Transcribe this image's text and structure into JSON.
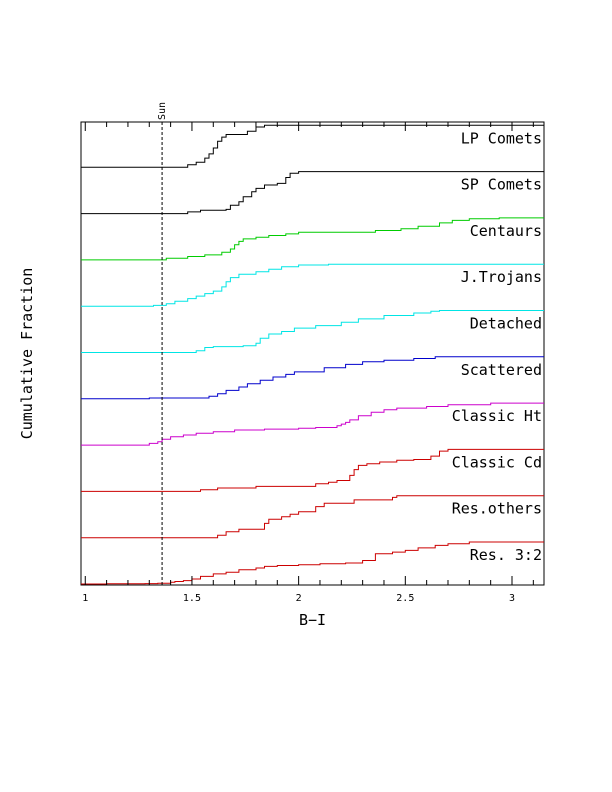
{
  "chart_data": {
    "type": "line",
    "xlabel": "B−I",
    "ylabel": "Cumulative Fraction",
    "xlim": [
      0.98,
      3.15
    ],
    "x_ticks": [
      1,
      1.5,
      2,
      2.5,
      3
    ],
    "x_tick_labels": [
      "1",
      "1.5",
      "2",
      "2.5",
      "3"
    ],
    "grid": false,
    "reference_line": {
      "x": 1.36,
      "label": "Sun"
    },
    "series": [
      {
        "name": "Res. 3:2",
        "color": "#cc0000",
        "steps": [
          [
            0.98,
            0.0
          ],
          [
            1.1,
            0.004
          ],
          [
            1.28,
            0.01
          ],
          [
            1.34,
            0.02
          ],
          [
            1.4,
            0.04
          ],
          [
            1.42,
            0.06
          ],
          [
            1.46,
            0.08
          ],
          [
            1.5,
            0.12
          ],
          [
            1.54,
            0.18
          ],
          [
            1.6,
            0.24
          ],
          [
            1.66,
            0.28
          ],
          [
            1.72,
            0.34
          ],
          [
            1.8,
            0.38
          ],
          [
            1.84,
            0.42
          ],
          [
            1.9,
            0.44
          ],
          [
            2.0,
            0.46
          ],
          [
            2.1,
            0.48
          ],
          [
            2.22,
            0.5
          ],
          [
            2.3,
            0.56
          ],
          [
            2.36,
            0.72
          ],
          [
            2.44,
            0.76
          ],
          [
            2.5,
            0.8
          ],
          [
            2.56,
            0.86
          ],
          [
            2.64,
            0.92
          ],
          [
            2.7,
            0.96
          ],
          [
            2.8,
            1.0
          ],
          [
            3.15,
            1.0
          ]
        ]
      },
      {
        "name": "Res.others",
        "color": "#cc0000",
        "steps": [
          [
            0.98,
            0.0
          ],
          [
            1.62,
            0.06
          ],
          [
            1.66,
            0.14
          ],
          [
            1.72,
            0.2
          ],
          [
            1.84,
            0.34
          ],
          [
            1.86,
            0.44
          ],
          [
            1.92,
            0.5
          ],
          [
            1.96,
            0.56
          ],
          [
            2.0,
            0.62
          ],
          [
            2.08,
            0.74
          ],
          [
            2.12,
            0.82
          ],
          [
            2.26,
            0.9
          ],
          [
            2.44,
            0.96
          ],
          [
            2.46,
            1.0
          ],
          [
            3.15,
            1.0
          ]
        ]
      },
      {
        "name": "Classic Cd",
        "color": "#cc0000",
        "steps": [
          [
            0.98,
            0.0
          ],
          [
            1.54,
            0.04
          ],
          [
            1.62,
            0.08
          ],
          [
            1.8,
            0.12
          ],
          [
            2.08,
            0.18
          ],
          [
            2.14,
            0.22
          ],
          [
            2.18,
            0.26
          ],
          [
            2.24,
            0.38
          ],
          [
            2.26,
            0.52
          ],
          [
            2.28,
            0.62
          ],
          [
            2.32,
            0.66
          ],
          [
            2.38,
            0.7
          ],
          [
            2.46,
            0.74
          ],
          [
            2.54,
            0.76
          ],
          [
            2.62,
            0.84
          ],
          [
            2.66,
            0.96
          ],
          [
            2.7,
            1.0
          ],
          [
            3.15,
            1.0
          ]
        ]
      },
      {
        "name": "Classic Ht",
        "color": "#cc00cc",
        "steps": [
          [
            0.98,
            0.0
          ],
          [
            1.3,
            0.04
          ],
          [
            1.34,
            0.08
          ],
          [
            1.36,
            0.14
          ],
          [
            1.4,
            0.2
          ],
          [
            1.46,
            0.24
          ],
          [
            1.52,
            0.28
          ],
          [
            1.6,
            0.32
          ],
          [
            1.7,
            0.36
          ],
          [
            1.84,
            0.38
          ],
          [
            2.0,
            0.4
          ],
          [
            2.08,
            0.42
          ],
          [
            2.18,
            0.46
          ],
          [
            2.2,
            0.5
          ],
          [
            2.22,
            0.54
          ],
          [
            2.24,
            0.6
          ],
          [
            2.28,
            0.7
          ],
          [
            2.34,
            0.78
          ],
          [
            2.4,
            0.84
          ],
          [
            2.46,
            0.88
          ],
          [
            2.6,
            0.92
          ],
          [
            2.7,
            0.96
          ],
          [
            2.9,
            1.0
          ],
          [
            3.15,
            1.0
          ]
        ]
      },
      {
        "name": "Scattered",
        "color": "#0000cc",
        "steps": [
          [
            0.98,
            0.0
          ],
          [
            1.3,
            0.02
          ],
          [
            1.58,
            0.06
          ],
          [
            1.62,
            0.12
          ],
          [
            1.66,
            0.2
          ],
          [
            1.72,
            0.28
          ],
          [
            1.76,
            0.36
          ],
          [
            1.82,
            0.44
          ],
          [
            1.88,
            0.52
          ],
          [
            1.94,
            0.58
          ],
          [
            1.98,
            0.64
          ],
          [
            2.12,
            0.74
          ],
          [
            2.22,
            0.82
          ],
          [
            2.3,
            0.88
          ],
          [
            2.4,
            0.92
          ],
          [
            2.54,
            0.96
          ],
          [
            2.64,
            1.0
          ],
          [
            3.15,
            1.0
          ]
        ]
      },
      {
        "name": "Detached",
        "color": "#00e5e5",
        "steps": [
          [
            0.98,
            0.0
          ],
          [
            1.52,
            0.04
          ],
          [
            1.56,
            0.12
          ],
          [
            1.6,
            0.14
          ],
          [
            1.74,
            0.16
          ],
          [
            1.8,
            0.22
          ],
          [
            1.82,
            0.34
          ],
          [
            1.86,
            0.44
          ],
          [
            1.92,
            0.5
          ],
          [
            1.98,
            0.58
          ],
          [
            2.08,
            0.64
          ],
          [
            2.2,
            0.72
          ],
          [
            2.28,
            0.8
          ],
          [
            2.4,
            0.88
          ],
          [
            2.54,
            0.94
          ],
          [
            2.62,
            0.98
          ],
          [
            2.66,
            1.0
          ],
          [
            3.15,
            1.0
          ]
        ]
      },
      {
        "name": "J.Trojans",
        "color": "#00e5e5",
        "steps": [
          [
            0.98,
            0.0
          ],
          [
            1.32,
            0.02
          ],
          [
            1.38,
            0.06
          ],
          [
            1.42,
            0.12
          ],
          [
            1.48,
            0.18
          ],
          [
            1.52,
            0.24
          ],
          [
            1.56,
            0.3
          ],
          [
            1.6,
            0.36
          ],
          [
            1.64,
            0.46
          ],
          [
            1.66,
            0.58
          ],
          [
            1.68,
            0.68
          ],
          [
            1.72,
            0.76
          ],
          [
            1.8,
            0.82
          ],
          [
            1.86,
            0.88
          ],
          [
            1.92,
            0.94
          ],
          [
            2.0,
            0.98
          ],
          [
            2.14,
            1.0
          ],
          [
            3.15,
            1.0
          ]
        ]
      },
      {
        "name": "Centaurs",
        "color": "#00cc00",
        "steps": [
          [
            0.98,
            0.0
          ],
          [
            1.38,
            0.04
          ],
          [
            1.48,
            0.08
          ],
          [
            1.56,
            0.12
          ],
          [
            1.64,
            0.18
          ],
          [
            1.68,
            0.26
          ],
          [
            1.7,
            0.36
          ],
          [
            1.72,
            0.44
          ],
          [
            1.74,
            0.5
          ],
          [
            1.8,
            0.54
          ],
          [
            1.86,
            0.58
          ],
          [
            1.94,
            0.62
          ],
          [
            2.0,
            0.66
          ],
          [
            2.36,
            0.7
          ],
          [
            2.48,
            0.74
          ],
          [
            2.56,
            0.8
          ],
          [
            2.66,
            0.88
          ],
          [
            2.72,
            0.94
          ],
          [
            2.8,
            0.98
          ],
          [
            2.94,
            1.0
          ],
          [
            3.15,
            1.0
          ]
        ]
      },
      {
        "name": "SP Comets",
        "color": "#000000",
        "steps": [
          [
            0.98,
            0.0
          ],
          [
            1.48,
            0.04
          ],
          [
            1.54,
            0.08
          ],
          [
            1.66,
            0.1
          ],
          [
            1.68,
            0.2
          ],
          [
            1.72,
            0.28
          ],
          [
            1.74,
            0.4
          ],
          [
            1.78,
            0.52
          ],
          [
            1.8,
            0.6
          ],
          [
            1.84,
            0.68
          ],
          [
            1.9,
            0.72
          ],
          [
            1.94,
            0.86
          ],
          [
            1.96,
            0.96
          ],
          [
            2.0,
            1.0
          ],
          [
            3.15,
            1.0
          ]
        ]
      },
      {
        "name": "LP Comets",
        "color": "#000000",
        "steps": [
          [
            0.98,
            0.0
          ],
          [
            1.48,
            0.06
          ],
          [
            1.52,
            0.12
          ],
          [
            1.56,
            0.22
          ],
          [
            1.58,
            0.32
          ],
          [
            1.6,
            0.46
          ],
          [
            1.62,
            0.62
          ],
          [
            1.64,
            0.72
          ],
          [
            1.66,
            0.78
          ],
          [
            1.76,
            0.86
          ],
          [
            1.8,
            0.96
          ],
          [
            1.84,
            1.0
          ],
          [
            3.15,
            1.0
          ]
        ]
      }
    ]
  }
}
